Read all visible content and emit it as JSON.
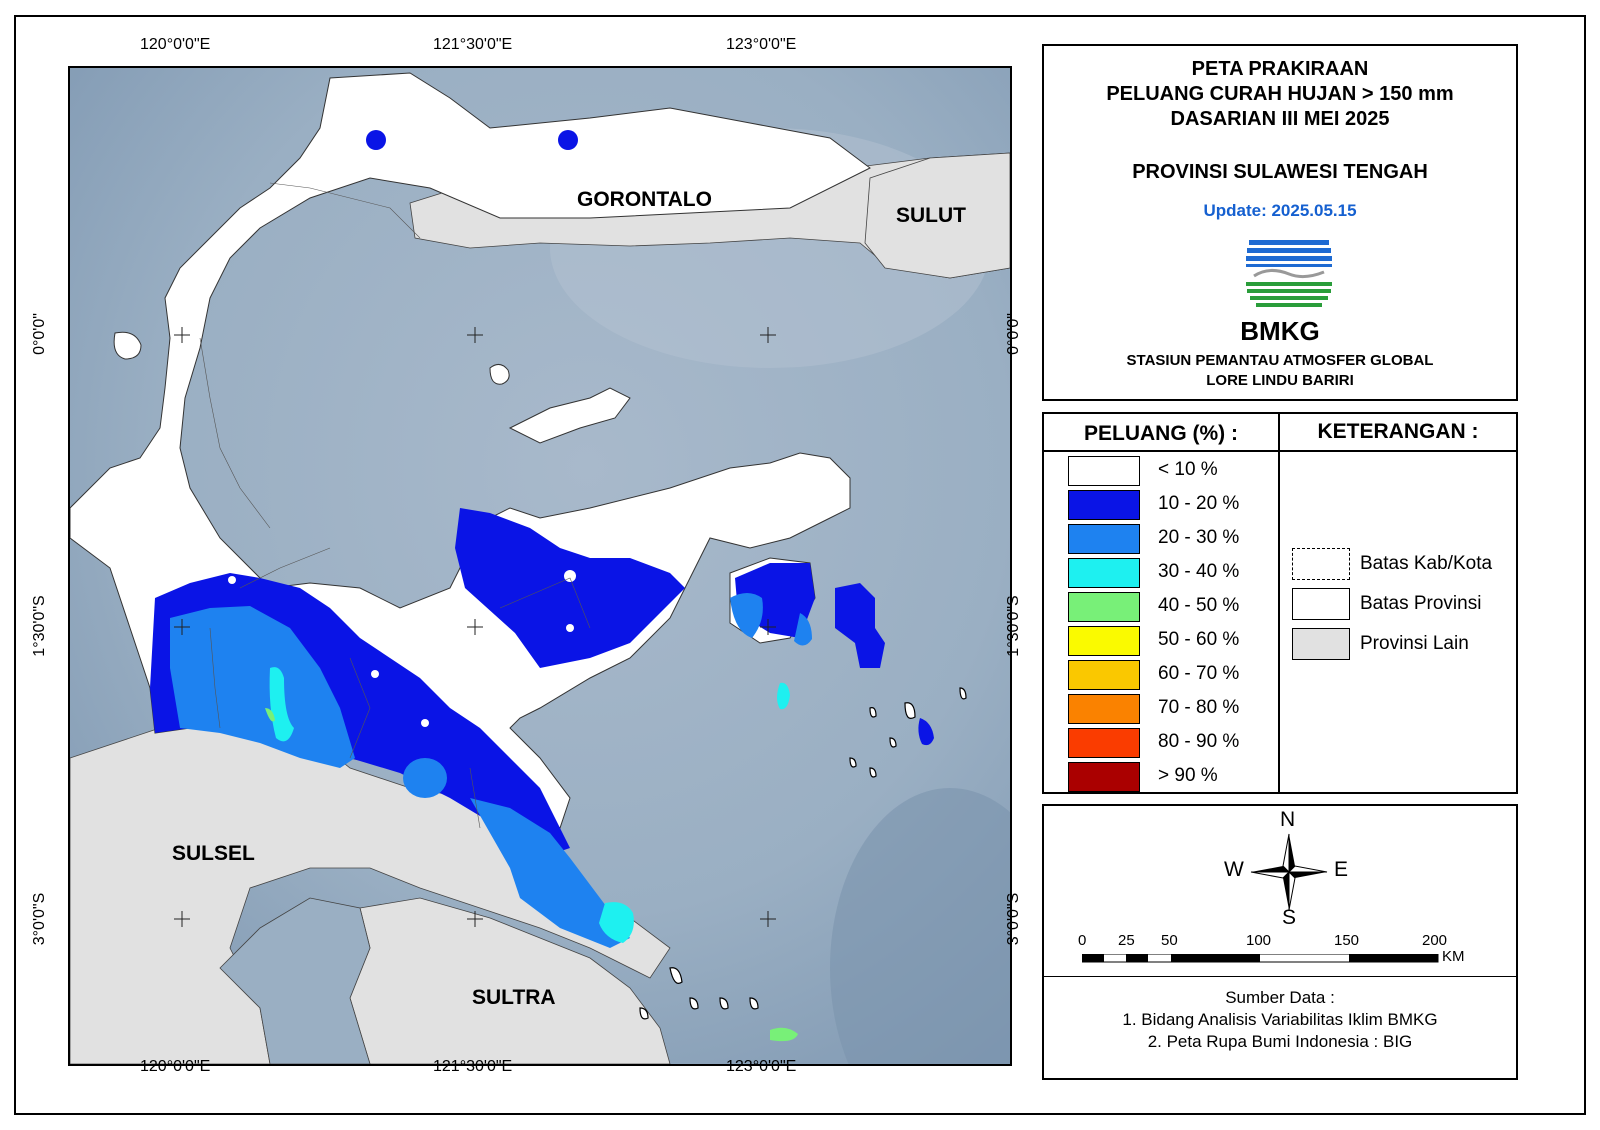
{
  "map": {
    "top_ticks": [
      "120°0'0\"E",
      "121°30'0\"E",
      "123°0'0\"E"
    ],
    "bottom_ticks": [
      "120°0'0\"E",
      "121°30'0\"E",
      "123°0'0\"E"
    ],
    "left_ticks": [
      "0°0'0\"",
      "1°30'0\"S",
      "3°0'0\"S"
    ],
    "right_ticks": [
      "0°0'0\"",
      "1°30'0\"S",
      "3°0'0\"S"
    ],
    "labels": {
      "gorontalo": "GORONTALO",
      "sulut": "SULUT",
      "sulsel": "SULSEL",
      "sultra": "SULTRA"
    },
    "colors": {
      "sea": "#9db1c4",
      "land_other": "#e1e1e1",
      "land_province": "#ffffff"
    }
  },
  "header": {
    "line1": "PETA PRAKIRAAN",
    "line2": "PELUANG CURAH HUJAN > 150 mm",
    "line3": "DASARIAN III MEI 2025",
    "province": "PROVINSI SULAWESI TENGAH",
    "update": "Update: 2025.05.15",
    "logo_text": "BMKG",
    "station_line1": "STASIUN PEMANTAU ATMOSFER GLOBAL",
    "station_line2": "LORE LINDU BARIRI"
  },
  "legend": {
    "title": "PELUANG (%) :",
    "items": [
      {
        "label": "< 10 %",
        "color": "#ffffff"
      },
      {
        "label": "10 - 20 %",
        "color": "#0a14e6"
      },
      {
        "label": "20 - 30 %",
        "color": "#1e82f0"
      },
      {
        "label": "30 - 40 %",
        "color": "#1ef0f0"
      },
      {
        "label": "40 - 50 %",
        "color": "#78f078"
      },
      {
        "label": "50 - 60 %",
        "color": "#fafa00"
      },
      {
        "label": "60 - 70 %",
        "color": "#fac800"
      },
      {
        "label": "70 - 80 %",
        "color": "#fa8200"
      },
      {
        "label": "80 - 90 %",
        "color": "#fa3c00"
      },
      {
        "label": "> 90 %",
        "color": "#aa0000"
      }
    ]
  },
  "keterangan": {
    "title": "KETERANGAN :",
    "items": [
      {
        "label": "Batas Kab/Kota",
        "style": "dashed",
        "color": "#ffffff"
      },
      {
        "label": "Batas Provinsi",
        "style": "solid",
        "color": "#ffffff"
      },
      {
        "label": "Provinsi Lain",
        "style": "solid",
        "color": "#e1e1e1"
      }
    ]
  },
  "compass": {
    "n": "N",
    "s": "S",
    "e": "E",
    "w": "W"
  },
  "scale": {
    "ticks": [
      "0",
      "25",
      "50",
      "100",
      "150",
      "200"
    ],
    "unit": "KM"
  },
  "source": {
    "title": "Sumber Data :",
    "line1": "1. Bidang Analisis Variabilitas Iklim BMKG",
    "line2": "2. Peta Rupa Bumi Indonesia : BIG"
  }
}
